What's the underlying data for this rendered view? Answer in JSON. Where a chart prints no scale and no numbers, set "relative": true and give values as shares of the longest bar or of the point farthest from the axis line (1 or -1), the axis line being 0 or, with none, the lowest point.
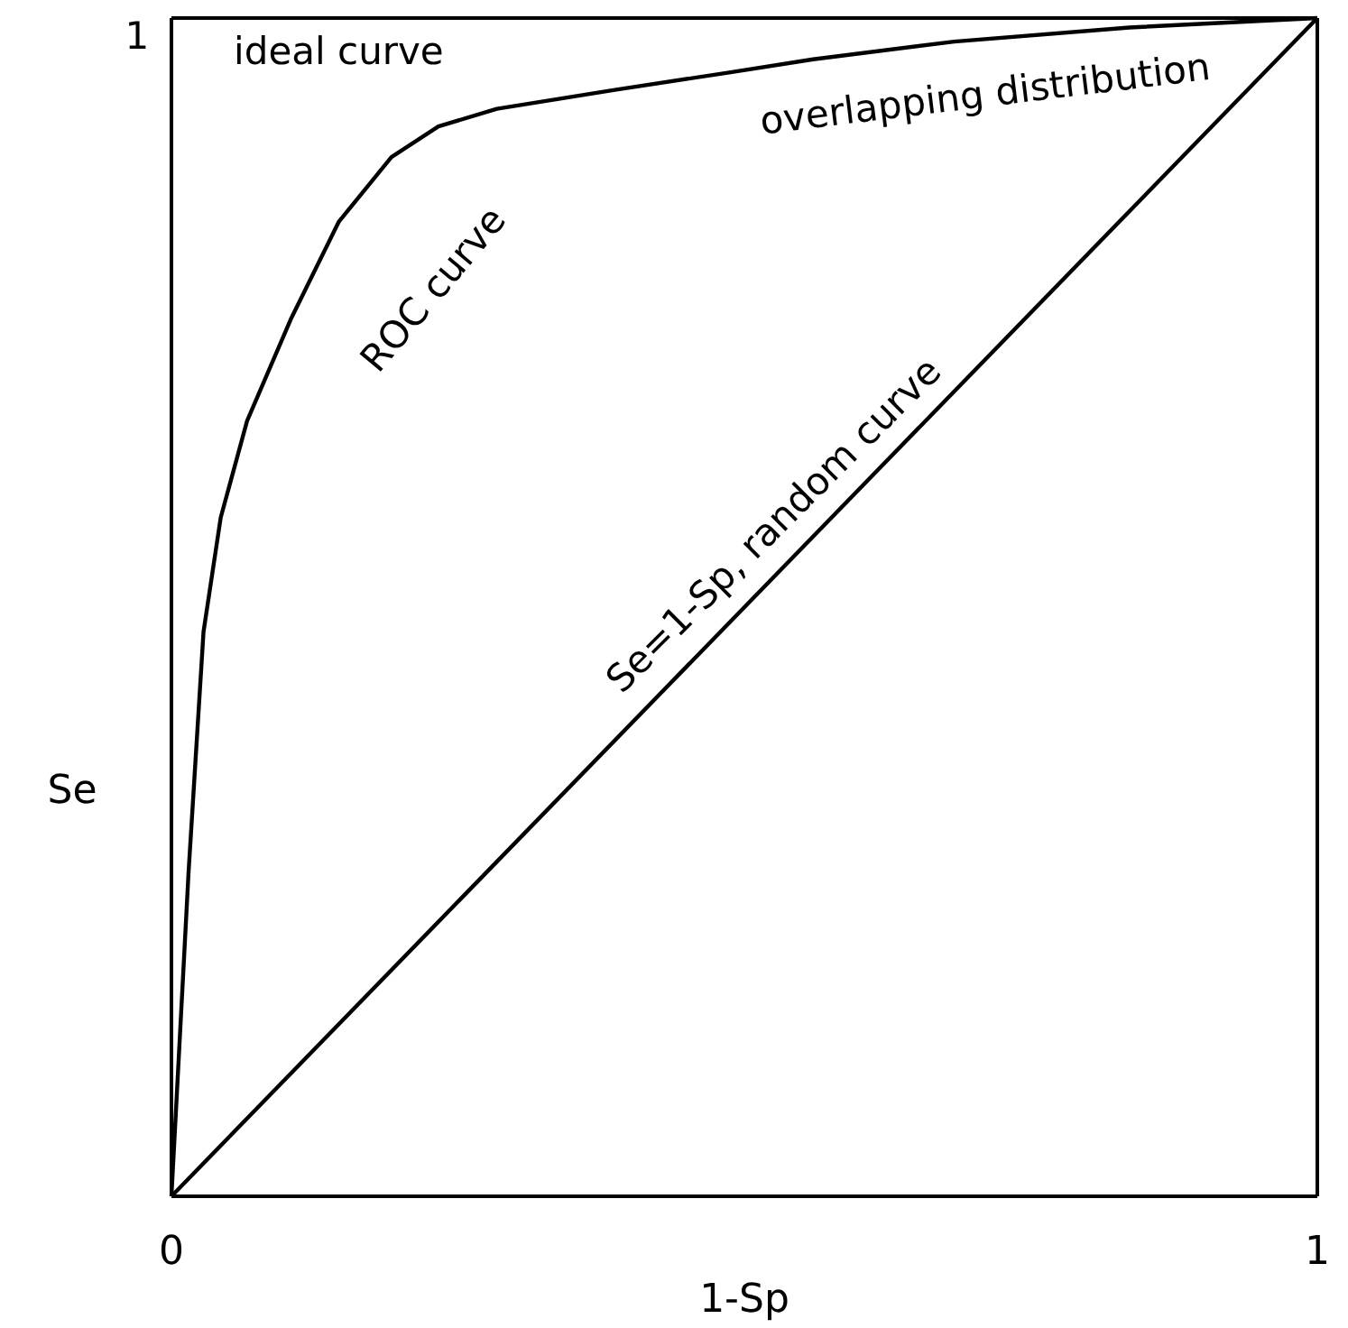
{
  "chart_data": {
    "type": "line",
    "xlabel": "1-Sp",
    "ylabel": "Se",
    "xlim": [
      0,
      1
    ],
    "xticks": [
      0,
      1
    ],
    "relative": true,
    "series": [
      {
        "color": "#000000",
        "x": [
          0,
          0.015,
          0.028,
          0.043,
          0.066,
          0.104,
          0.146,
          0.192,
          0.233,
          0.284,
          0.387,
          0.488,
          0.56,
          0.683,
          0.836,
          1
        ],
        "values": [
          0,
          0.276,
          0.479,
          0.576,
          0.658,
          0.744,
          0.827,
          0.882,
          0.908,
          0.923,
          0.939,
          0.954,
          0.965,
          0.98,
          0.992,
          1
        ]
      },
      {
        "color": "#000000",
        "x": [
          0,
          1
        ],
        "values": [
          0,
          1
        ]
      }
    ],
    "annotations": [
      "1",
      "ideal curve",
      "ROC curve",
      "overlapping distribution",
      "Se=1-Sp, random curve"
    ]
  }
}
